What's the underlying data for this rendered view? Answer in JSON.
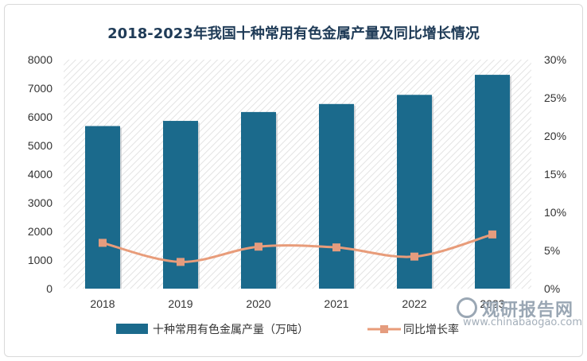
{
  "chart_data": {
    "type": "bar",
    "title": "2018-2023年我国十种常用有色金属产量及同比增长情况",
    "categories": [
      "2018",
      "2019",
      "2020",
      "2021",
      "2022",
      "2023"
    ],
    "series": [
      {
        "name": "十种常用有色金属产量（万吨）",
        "type": "bar",
        "axis": "left",
        "values": [
          5680,
          5860,
          6170,
          6450,
          6770,
          7470
        ]
      },
      {
        "name": "同比增长率",
        "type": "line",
        "axis": "right",
        "values": [
          6.0,
          3.5,
          5.5,
          5.4,
          4.2,
          7.1
        ]
      }
    ],
    "y_left": {
      "range": [
        0,
        8000
      ],
      "ticks": [
        "0",
        "1000",
        "2000",
        "3000",
        "4000",
        "5000",
        "6000",
        "7000",
        "8000"
      ]
    },
    "y_right": {
      "range": [
        0,
        30
      ],
      "ticks": [
        "0%",
        "5%",
        "10%",
        "15%",
        "20%",
        "25%",
        "30%"
      ]
    },
    "legend_position": "bottom",
    "colors": {
      "bar": "#1b6a8c",
      "line": "#e89c7a",
      "marker": "#e59c7e"
    }
  },
  "watermark": {
    "brand": "观研报告网",
    "url": "www.chinabaogao.com"
  }
}
